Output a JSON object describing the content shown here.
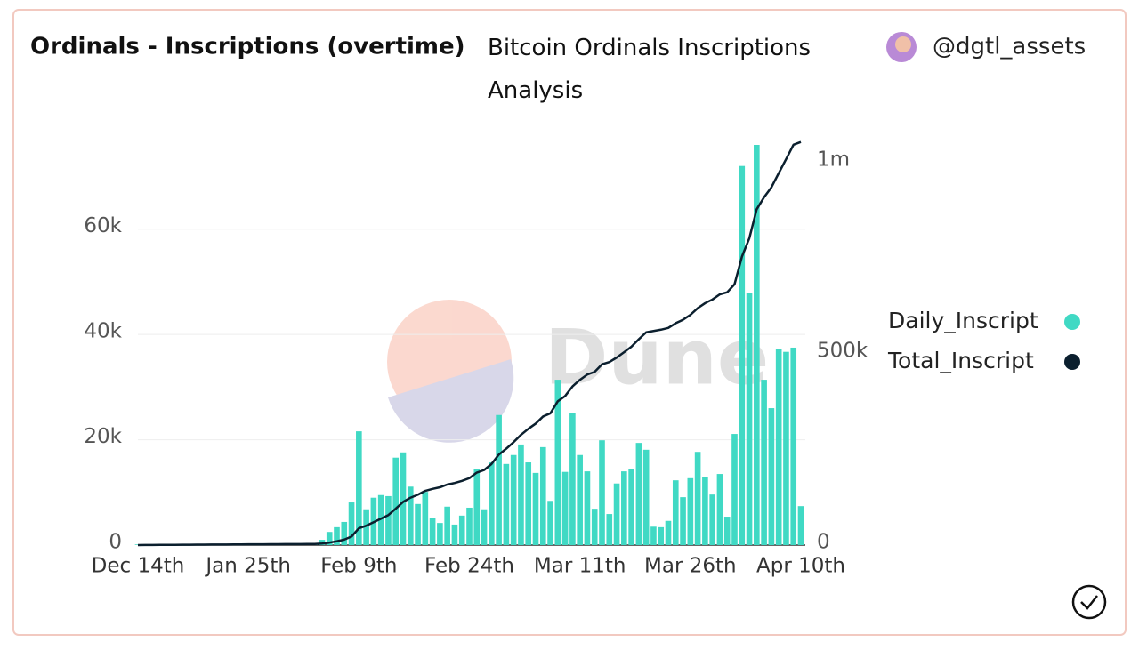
{
  "chart_data": {
    "type": "bar-line",
    "title": "Ordinals - Inscriptions (overtime)",
    "subtitle": "Bitcoin Ordinals Inscriptions Analysis",
    "author": "@dgtl_assets",
    "watermark": "Dune",
    "categories": [
      "Dec 14th",
      null,
      null,
      null,
      null,
      null,
      null,
      null,
      null,
      null,
      null,
      null,
      null,
      null,
      null,
      "Jan 25th",
      null,
      null,
      null,
      null,
      null,
      null,
      null,
      null,
      null,
      null,
      null,
      null,
      null,
      null,
      "Feb 9th",
      null,
      null,
      null,
      null,
      null,
      null,
      null,
      null,
      null,
      null,
      null,
      null,
      null,
      null,
      "Feb 24th",
      null,
      null,
      null,
      null,
      null,
      null,
      null,
      null,
      null,
      null,
      null,
      null,
      null,
      null,
      "Mar 11th",
      null,
      null,
      null,
      null,
      null,
      null,
      null,
      null,
      null,
      null,
      null,
      null,
      null,
      null,
      "Mar 26th",
      null,
      null,
      null,
      null,
      null,
      null,
      null,
      null,
      null,
      null,
      null,
      null,
      null,
      null,
      "Apr 10th"
    ],
    "series": [
      {
        "name": "Daily_Inscript",
        "color": "#40d9c4",
        "kind": "bar",
        "axis": "y",
        "values": [
          120,
          120,
          120,
          120,
          120,
          120,
          120,
          120,
          120,
          120,
          120,
          120,
          120,
          120,
          120,
          120,
          120,
          120,
          120,
          120,
          120,
          120,
          120,
          120,
          120,
          1000,
          2500,
          3400,
          4400,
          8100,
          21600,
          6800,
          9000,
          9500,
          9300,
          16600,
          17600,
          11100,
          7800,
          10100,
          5100,
          4200,
          7300,
          3900,
          5600,
          7100,
          14400,
          6800,
          15700,
          24700,
          15400,
          17100,
          19100,
          15700,
          13700,
          18600,
          8400,
          31400,
          13900,
          25000,
          17100,
          14000,
          6900,
          19900,
          5900,
          11700,
          14000,
          14500,
          19400,
          18100,
          3500,
          3400,
          4600,
          12300,
          9100,
          12700,
          17700,
          13000,
          9600,
          13500,
          5400,
          21100,
          72000,
          47800,
          76000,
          31400,
          26000,
          37200,
          36700,
          37500,
          7400
        ]
      },
      {
        "name": "Total_Inscript",
        "color": "#0b1f2e",
        "kind": "line",
        "axis": "y2",
        "values": [
          120,
          240,
          360,
          480,
          600,
          720,
          840,
          960,
          1080,
          1200,
          1320,
          1440,
          1560,
          1680,
          1800,
          1920,
          2040,
          2160,
          2280,
          2400,
          2520,
          2640,
          2760,
          2880,
          3000,
          4000,
          6500,
          9900,
          14300,
          22400,
          44000,
          50800,
          59800,
          69300,
          78600,
          95200,
          112800,
          123900,
          131700,
          141800,
          146900,
          151100,
          158400,
          162300,
          167900,
          175000,
          189400,
          196200,
          211900,
          236600,
          252000,
          269100,
          288200,
          303900,
          317600,
          336200,
          344600,
          376000,
          389900,
          414900,
          432000,
          446000,
          452900,
          472800,
          478700,
          490400,
          504400,
          518900,
          538300,
          556400,
          559900,
          563300,
          567900,
          580200,
          589300,
          602000,
          619700,
          632700,
          642300,
          655800,
          661200,
          682300,
          754300,
          802100,
          878100,
          909500,
          935500,
          972700,
          1009400,
          1046900,
          1054300
        ]
      }
    ],
    "ylim": [
      0,
      76000
    ],
    "yticks": [
      0,
      {
        "value": 20000,
        "label": "20k"
      },
      {
        "value": 40000,
        "label": "40k"
      },
      {
        "value": 60000,
        "label": "60k"
      }
    ],
    "y2lim": [
      0,
      1046500
    ],
    "y2ticks": [
      0,
      {
        "value": 500000,
        "label": "500k"
      },
      {
        "value": 1000000,
        "label": "1m"
      }
    ],
    "grid": true
  }
}
